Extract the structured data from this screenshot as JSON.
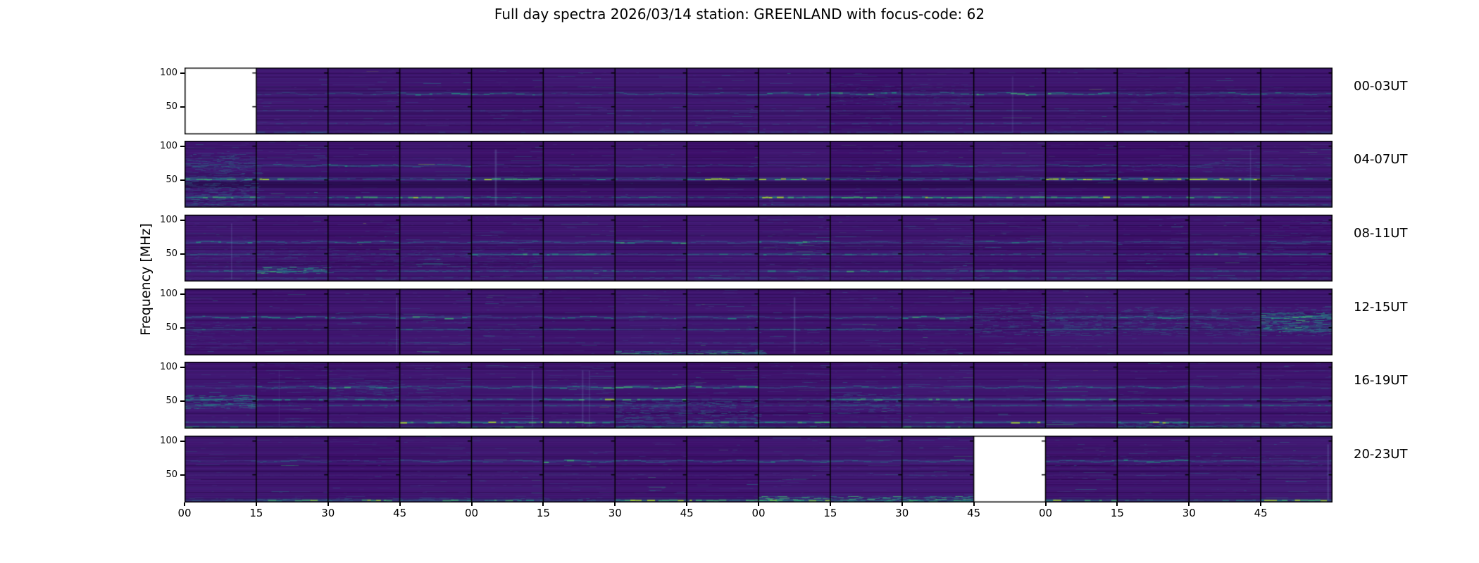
{
  "figure": {
    "background": "#ffffff"
  },
  "chart_data": {
    "type": "heatmap",
    "title": "Full day spectra 2026/03/14 station: GREENLAND with focus-code: 62",
    "ylabel": "Frequency [MHz]",
    "y_ticks": [
      100,
      50
    ],
    "y_range_mhz": [
      9,
      108
    ],
    "x_tick_labels": [
      "00",
      "15",
      "30",
      "45",
      "00",
      "15",
      "30",
      "45",
      "00",
      "15",
      "30",
      "45",
      "00",
      "15",
      "30",
      "45"
    ],
    "segments_per_row": 16,
    "minutes_per_segment": 15,
    "hours_per_row": 4,
    "colormap": "viridis",
    "grid": false,
    "legend": "none",
    "palette": {
      "base": "#3b0d66",
      "striation_light": "#52288c",
      "striation_dark": "#190637",
      "tint_blue": "#6e82d2",
      "ramp": [
        "#433d84",
        "#30678d",
        "#26828e",
        "#1fa187",
        "#3dbc74",
        "#a2da37"
      ],
      "glow": "#3b6a9a",
      "vertical_streak": "#86b4d8",
      "missing": "#ffffff",
      "frame": "#000000"
    },
    "seed": 20260314,
    "rows": [
      {
        "label": "00-03UT",
        "hours": "00:00-04:00",
        "missing_segments": [
          0
        ],
        "activity": 0.4,
        "bands": [
          {
            "f": 70,
            "s": 0.5,
            "wavy": 1
          },
          {
            "f": 45,
            "s": 0.18
          },
          {
            "f": 26,
            "s": 0.22
          },
          {
            "f": 13,
            "s": 0.3
          }
        ],
        "patches": [
          {
            "s0": 9,
            "s1": 11,
            "f0": 50,
            "f1": 85,
            "k": 0.35
          },
          {
            "s0": 13,
            "s1": 16,
            "f0": 55,
            "f1": 80,
            "k": 0.25
          }
        ],
        "dark_bands": []
      },
      {
        "label": "04-07UT",
        "hours": "04:00-08:00",
        "missing_segments": [],
        "activity": 0.5,
        "bands": [
          {
            "f": 72,
            "s": 0.45,
            "wavy": 1
          },
          {
            "f": 52,
            "s": 0.9
          },
          {
            "f": 25,
            "s": 0.85
          },
          {
            "f": 14,
            "s": 0.3
          }
        ],
        "patches": [
          {
            "s0": 0,
            "s1": 1,
            "f0": 10,
            "f1": 90,
            "k": 0.55
          },
          {
            "s0": 13,
            "s1": 15,
            "f0": 60,
            "f1": 75,
            "k": 0.3
          }
        ],
        "dark_bands": [
          {
            "f0": 38,
            "f1": 48
          }
        ]
      },
      {
        "label": "08-11UT",
        "hours": "08:00-12:00",
        "missing_segments": [],
        "activity": 0.75,
        "bands": [
          {
            "f": 68,
            "s": 0.5,
            "wavy": 1
          },
          {
            "f": 50,
            "s": 0.45
          },
          {
            "f": 25,
            "s": 0.45
          },
          {
            "f": 15,
            "s": 0.25
          }
        ],
        "patches": [
          {
            "s0": 1,
            "s1": 2,
            "f0": 20,
            "f1": 30,
            "k": 0.85
          },
          {
            "s0": 0,
            "s1": 5,
            "f0": 28,
            "f1": 58,
            "k": 0.3
          },
          {
            "s0": 8,
            "s1": 9,
            "f0": 55,
            "f1": 70,
            "k": 0.3
          }
        ],
        "dark_bands": []
      },
      {
        "label": "12-15UT",
        "hours": "12:00-16:00",
        "missing_segments": [],
        "activity": 0.5,
        "bands": [
          {
            "f": 66,
            "s": 0.5,
            "wavy": 1
          },
          {
            "f": 48,
            "s": 0.35
          },
          {
            "f": 28,
            "s": 0.2
          }
        ],
        "patches": [
          {
            "s0": 6,
            "s1": 8,
            "f0": 10,
            "f1": 16,
            "k": 0.85
          },
          {
            "s0": 11,
            "s1": 16,
            "f0": 38,
            "f1": 80,
            "k": 0.45
          },
          {
            "s0": 15,
            "s1": 16,
            "f0": 43,
            "f1": 72,
            "k": 0.8
          },
          {
            "s0": 0,
            "s1": 1,
            "f0": 20,
            "f1": 60,
            "k": 0.3
          }
        ],
        "dark_bands": []
      },
      {
        "label": "16-19UT",
        "hours": "16:00-20:00",
        "missing_segments": [],
        "activity": 0.85,
        "bands": [
          {
            "f": 71,
            "s": 0.55,
            "wavy": 1
          },
          {
            "f": 53,
            "s": 0.6
          },
          {
            "f": 44,
            "s": 0.4
          },
          {
            "f": 19,
            "s": 0.6
          },
          {
            "f": 12,
            "s": 0.5
          }
        ],
        "patches": [
          {
            "s0": 0,
            "s1": 1,
            "f0": 38,
            "f1": 58,
            "k": 0.7
          },
          {
            "s0": 6,
            "s1": 8,
            "f0": 8,
            "f1": 50,
            "k": 0.55
          },
          {
            "s0": 9,
            "s1": 10,
            "f0": 30,
            "f1": 60,
            "k": 0.5
          },
          {
            "s0": 13,
            "s1": 16,
            "f0": 10,
            "f1": 18,
            "k": 0.55
          },
          {
            "s0": 2,
            "s1": 3,
            "f0": 50,
            "f1": 80,
            "k": 0.4
          }
        ],
        "dark_bands": []
      },
      {
        "label": "20-23UT",
        "hours": "20:00-24:00",
        "missing_segments": [
          11
        ],
        "activity": 0.35,
        "bands": [
          {
            "f": 71,
            "s": 0.5,
            "wavy": 1
          },
          {
            "f": 50,
            "s": 0.15
          },
          {
            "f": 13,
            "s": 0.7
          }
        ],
        "patches": [
          {
            "s0": 8,
            "s1": 11,
            "f0": 9,
            "f1": 18,
            "k": 0.9
          },
          {
            "s0": 0,
            "s1": 6,
            "f0": 10,
            "f1": 16,
            "k": 0.4
          },
          {
            "s0": 12,
            "s1": 16,
            "f0": 60,
            "f1": 78,
            "k": 0.25
          }
        ],
        "dark_bands": []
      }
    ]
  }
}
